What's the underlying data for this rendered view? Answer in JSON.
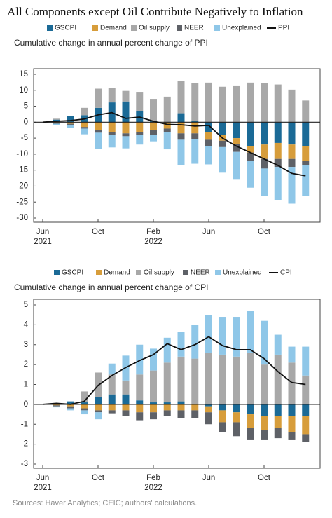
{
  "title": "All Components except Oil Contribute Negatively to Inflation",
  "source": "Sources: Haver Analytics; CEIC; authors' calculations.",
  "chart_data": [
    {
      "type": "bar",
      "stacked": true,
      "subtitle": "Cumulative change in annual percent change of PPI",
      "categories": [
        "Jun",
        null,
        null,
        null,
        "Oct",
        null,
        null,
        null,
        "Feb",
        null,
        null,
        null,
        "Jun",
        null,
        null,
        null,
        "Oct",
        null,
        null,
        null
      ],
      "category_years": [
        "2021",
        null,
        null,
        null,
        null,
        null,
        null,
        null,
        "2022",
        null,
        null,
        null,
        null,
        null,
        null,
        null,
        null,
        null,
        null,
        null
      ],
      "ylim": [
        -30,
        15
      ],
      "yticks": [
        15,
        10,
        5,
        0,
        -5,
        -10,
        -15,
        -20,
        -25,
        -30
      ],
      "series": [
        {
          "name": "GSCPI",
          "color": "#1b6a96",
          "values": [
            null,
            0.8,
            2.0,
            2.2,
            4.5,
            6.2,
            6.5,
            3.5,
            0.5,
            0,
            2.8,
            0.5,
            -3,
            -4,
            -5,
            -7.5,
            -7,
            -6.5,
            -7,
            -7.5
          ]
        },
        {
          "name": "Demand",
          "color": "#d79d3b",
          "values": [
            null,
            -0.3,
            -0.5,
            -1.5,
            -2.5,
            -3,
            -3.5,
            -3,
            -2.5,
            -2,
            -3.5,
            -3.5,
            -2.5,
            -1.8,
            -1.8,
            -2,
            -4.5,
            -5,
            -4.5,
            -4.5
          ]
        },
        {
          "name": "Oil supply",
          "color": "#a8a8a8",
          "values": [
            null,
            0.3,
            0,
            2.3,
            6.0,
            4.5,
            3.3,
            6.0,
            6.8,
            8.0,
            10.2,
            11.7,
            12.4,
            11.1,
            11.5,
            12.4,
            12.2,
            11.8,
            10.2,
            6.8
          ]
        },
        {
          "name": "NEER",
          "color": "#5e6167",
          "values": [
            null,
            -0.2,
            -0.3,
            -0.5,
            -0.8,
            -0.9,
            -0.9,
            -1,
            -1.5,
            -1,
            -2,
            -1.8,
            -2,
            -2,
            -2.5,
            -2.5,
            -3,
            -2.5,
            -2.5,
            -1.5
          ]
        },
        {
          "name": "Unexplained",
          "color": "#8fc7e8",
          "values": [
            null,
            -0.5,
            -1.0,
            -1.8,
            -5,
            -4,
            -3.8,
            -3,
            -2,
            -5.5,
            -8,
            -7.7,
            -5.7,
            -8,
            -8.7,
            -8.5,
            -8.5,
            -10.5,
            -11.5,
            -9.5
          ]
        },
        {
          "name": "PPI",
          "color": "#111111",
          "type": "line",
          "values": [
            0,
            0.3,
            0.5,
            1.0,
            2.3,
            3.0,
            1.2,
            1.6,
            0.3,
            -0.7,
            -0.8,
            -1.2,
            -1.0,
            -5.0,
            -7.5,
            -9.5,
            -11.5,
            -13.5,
            -16,
            -16.8
          ]
        }
      ]
    },
    {
      "type": "bar",
      "stacked": true,
      "subtitle": "Cumulative change in annual percent change of CPI",
      "categories": [
        "Jun",
        null,
        null,
        null,
        "Oct",
        null,
        null,
        null,
        "Feb",
        null,
        null,
        null,
        "Jun",
        null,
        null,
        null,
        "Oct",
        null,
        null,
        null
      ],
      "category_years": [
        "2021",
        null,
        null,
        null,
        null,
        null,
        null,
        null,
        "2022",
        null,
        null,
        null,
        null,
        null,
        null,
        null,
        null,
        null,
        null,
        null
      ],
      "ylim": [
        -3,
        5
      ],
      "yticks": [
        5,
        4,
        3,
        2,
        1,
        0,
        -1,
        -2,
        -3
      ],
      "series": [
        {
          "name": "GSCPI",
          "color": "#1b6a96",
          "values": [
            null,
            0.05,
            0.15,
            0.1,
            0.35,
            0.5,
            0.5,
            0.2,
            0.1,
            0.1,
            0.15,
            0,
            -0.1,
            -0.3,
            -0.4,
            -0.5,
            -0.6,
            -0.6,
            -0.6,
            -0.6
          ]
        },
        {
          "name": "Demand",
          "color": "#d79d3b",
          "values": [
            null,
            -0.05,
            -0.1,
            -0.2,
            -0.3,
            -0.3,
            -0.3,
            -0.4,
            -0.4,
            -0.3,
            -0.3,
            -0.3,
            -0.3,
            -0.6,
            -0.5,
            -0.7,
            -0.7,
            -0.6,
            -0.8,
            -0.9
          ]
        },
        {
          "name": "Oil supply",
          "color": "#a8a8a8",
          "values": [
            null,
            0,
            0,
            0.55,
            1.25,
            1.0,
            0.7,
            1.3,
            1.6,
            2.0,
            2.25,
            2.3,
            2.6,
            2.5,
            2.4,
            2.6,
            2.0,
            2.5,
            2.1,
            1.45
          ]
        },
        {
          "name": "NEER",
          "color": "#5e6167",
          "values": [
            null,
            -0.05,
            -0.1,
            -0.1,
            -0.1,
            -0.15,
            -0.3,
            -0.4,
            -0.35,
            -0.3,
            -0.4,
            -0.4,
            -0.6,
            -0.5,
            -0.7,
            -0.6,
            -0.5,
            -0.5,
            -0.4,
            -0.4
          ]
        },
        {
          "name": "Unexplained",
          "color": "#8fc7e8",
          "values": [
            null,
            -0.05,
            -0.1,
            -0.2,
            -0.35,
            0.55,
            1.25,
            1.5,
            1.1,
            1.25,
            1.25,
            1.7,
            1.9,
            1.9,
            2.0,
            2.1,
            2.2,
            1.0,
            0.8,
            1.45
          ]
        },
        {
          "name": "CPI",
          "color": "#111111",
          "type": "line",
          "values": [
            0,
            0.05,
            0,
            0.15,
            0.95,
            1.45,
            1.85,
            2.2,
            2.5,
            3.05,
            2.75,
            3.0,
            3.4,
            2.95,
            2.75,
            2.75,
            2.3,
            1.65,
            1.1,
            1.0
          ]
        }
      ]
    }
  ]
}
